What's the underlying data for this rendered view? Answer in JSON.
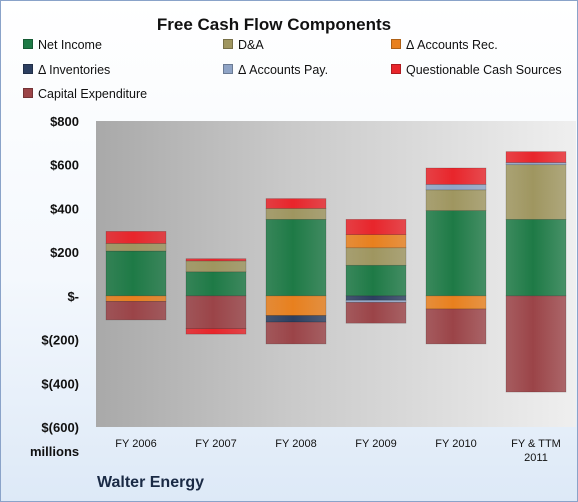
{
  "chart_data": {
    "type": "stacked-bar",
    "title": "Free Cash Flow Components",
    "unit_label": "millions",
    "company": "Walter Energy",
    "categories": [
      "FY 2006",
      "FY 2007",
      "FY 2008",
      "FY 2009",
      "FY 2010",
      "FY & TTM\n2011"
    ],
    "ylim": [
      -600,
      800
    ],
    "yticks": [
      -600,
      -400,
      -200,
      0,
      200,
      400,
      600,
      800
    ],
    "ytick_labels": [
      "$(600)",
      "$(400)",
      "$(200)",
      "$-",
      "$200",
      "$400",
      "$600",
      "$800"
    ],
    "legend_position": "top",
    "grid": false,
    "series": [
      {
        "name": "Net Income",
        "color": "#1e7a46",
        "values": [
          205,
          110,
          350,
          140,
          390,
          350
        ]
      },
      {
        "name": "D&A",
        "color": "#9f9660",
        "values": [
          35,
          50,
          50,
          80,
          95,
          250
        ]
      },
      {
        "name": "Δ Accounts Rec.",
        "color": "#e8801e",
        "values": [
          -25,
          0,
          -90,
          60,
          -60,
          0
        ]
      },
      {
        "name": "Δ Inventories",
        "color": "#2c3f60",
        "values": [
          0,
          0,
          -30,
          -20,
          0,
          0
        ]
      },
      {
        "name": "Δ Accounts Pay.",
        "color": "#8fa4c6",
        "values": [
          0,
          0,
          0,
          -10,
          25,
          10
        ]
      },
      {
        "name": "Questionable Cash Sources",
        "color": "#e8252b",
        "values": [
          55,
          10,
          45,
          70,
          75,
          50
        ]
      },
      {
        "name": "Capital Expenditure",
        "color": "#9b4448",
        "values": [
          -85,
          -150,
          -100,
          -95,
          -160,
          -440
        ]
      }
    ],
    "extra_marks": [
      {
        "category_index": 1,
        "series": "Questionable Cash Sources",
        "value": -25,
        "note": "shown below zero"
      }
    ]
  }
}
